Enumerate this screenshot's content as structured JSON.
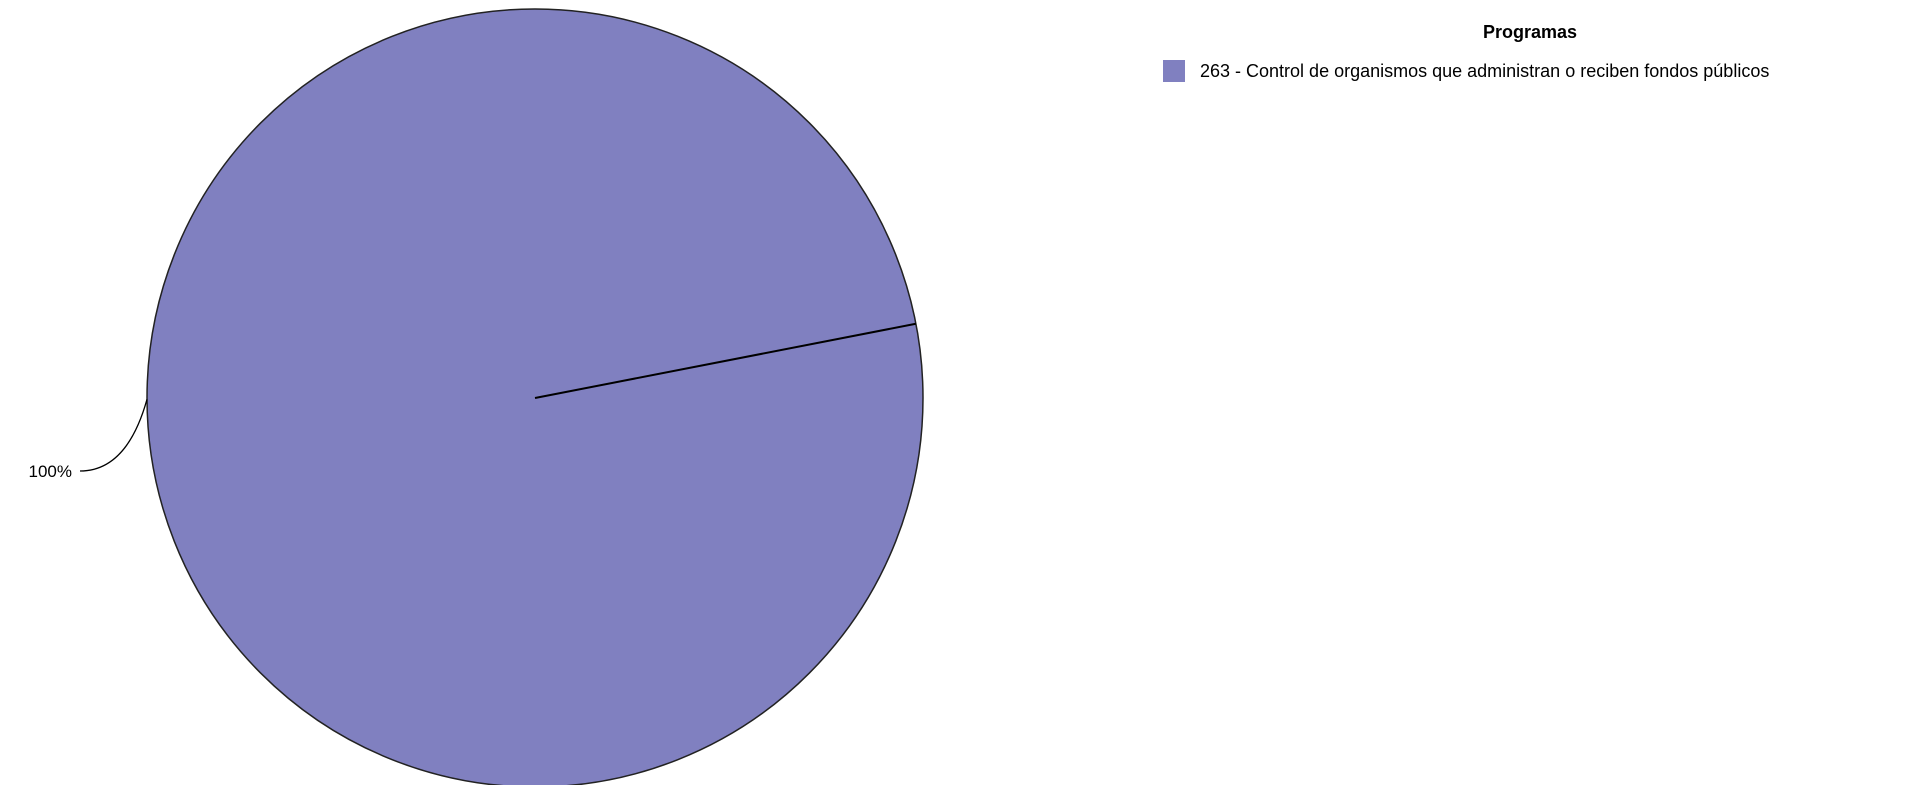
{
  "chart_data": {
    "type": "pie",
    "title": "",
    "slices": [
      {
        "label": "263 - Control de organismos que administran o reciben fondos públicos",
        "value": 100,
        "value_label": "100%",
        "color": "#8080C0"
      }
    ],
    "legend": {
      "title": "Programas",
      "placement": "top-right"
    }
  }
}
